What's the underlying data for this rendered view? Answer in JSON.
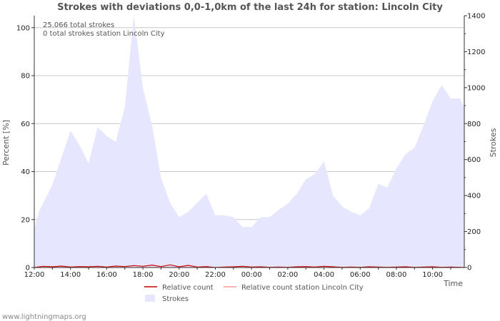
{
  "chart_data": {
    "type": "area",
    "title": "Strokes with deviations 0,0-1,0km of the last 24h for station: Lincoln City",
    "xlabel": "Time",
    "ylabel_left": "Percent   [%]",
    "ylabel_right": "Strokes",
    "ylim_left": [
      0,
      105
    ],
    "ylim_right": [
      0,
      1400
    ],
    "xlim": [
      12.0,
      35.75
    ],
    "left_ticks": [
      "0",
      "20",
      "40",
      "60",
      "80",
      "100"
    ],
    "left_tick_values": [
      0,
      20,
      40,
      60,
      80,
      100
    ],
    "right_ticks": [
      "0",
      "200",
      "400",
      "600",
      "800",
      "1000",
      "1200",
      "1400"
    ],
    "right_tick_values": [
      0,
      200,
      400,
      600,
      800,
      1000,
      1200,
      1400
    ],
    "x_ticks": [
      "12:00",
      "14:00",
      "16:00",
      "18:00",
      "20:00",
      "22:00",
      "00:00",
      "02:00",
      "04:00",
      "06:00",
      "08:00",
      "10:00"
    ],
    "x_tick_hours": [
      12,
      14,
      16,
      18,
      20,
      22,
      24,
      26,
      28,
      30,
      32,
      34
    ],
    "annotations": [
      "25.066 total strokes",
      "0 total strokes station Lincoln City"
    ],
    "legend": {
      "relative_count": "Relative count",
      "relative_station": "Relative count station Lincoln City",
      "strokes": "Strokes"
    },
    "series": [
      {
        "name": "Strokes",
        "axis": "right",
        "color": "#e6e6ff",
        "hours": [
          12.0,
          12.25,
          12.5,
          13.0,
          13.5,
          14.0,
          14.5,
          15.0,
          15.5,
          16.0,
          16.5,
          17.0,
          17.5,
          18.0,
          18.5,
          19.0,
          19.5,
          20.0,
          20.5,
          21.0,
          21.5,
          22.0,
          22.5,
          23.0,
          23.5,
          24.0,
          24.5,
          25.0,
          25.5,
          26.0,
          26.5,
          27.0,
          27.5,
          28.0,
          28.5,
          29.0,
          29.5,
          30.0,
          30.5,
          31.0,
          31.5,
          32.0,
          32.5,
          33.0,
          33.5,
          34.0,
          34.5,
          35.0,
          35.5,
          35.75
        ],
        "values": [
          210,
          310,
          360,
          460,
          610,
          760,
          680,
          580,
          780,
          730,
          700,
          890,
          1400,
          1000,
          790,
          500,
          360,
          280,
          310,
          360,
          410,
          290,
          290,
          280,
          225,
          225,
          280,
          280,
          320,
          355,
          410,
          490,
          520,
          590,
          400,
          340,
          310,
          290,
          330,
          465,
          445,
          550,
          630,
          665,
          790,
          925,
          1015,
          940,
          940,
          890
        ]
      },
      {
        "name": "Relative count",
        "axis": "left",
        "color": "#cc0000",
        "hours": [
          12.0,
          12.5,
          13.0,
          13.5,
          14.0,
          14.5,
          15.0,
          15.5,
          16.0,
          16.5,
          17.0,
          17.5,
          18.0,
          18.5,
          19.0,
          19.5,
          20.0,
          20.5,
          21.0,
          21.5,
          22.0,
          22.5,
          23.0,
          23.5,
          24.0,
          24.5,
          25.0,
          25.5,
          26.0,
          26.5,
          27.0,
          27.5,
          28.0,
          28.5,
          29.0,
          29.5,
          30.0,
          30.5,
          31.0,
          31.5,
          32.0,
          32.5,
          33.0,
          33.5,
          34.0,
          34.5,
          35.0,
          35.5,
          35.75
        ],
        "values": [
          0,
          0.5,
          0.3,
          0.6,
          0.2,
          0.4,
          0.3,
          0.5,
          0.2,
          0.6,
          0.4,
          0.8,
          0.5,
          1.0,
          0.4,
          1.1,
          0.3,
          0.9,
          0.2,
          0.4,
          0,
          0.2,
          0.3,
          0.5,
          0.2,
          0.3,
          0.1,
          0.2,
          0.1,
          0.3,
          0.4,
          0.2,
          0.5,
          0.3,
          0.1,
          0.2,
          0.1,
          0.3,
          0.2,
          0.1,
          0.2,
          0.3,
          0.1,
          0.2,
          0.3,
          0.1,
          0.2,
          0.1,
          0
        ]
      },
      {
        "name": "Relative count station Lincoln City",
        "axis": "left",
        "color": "#ff9999",
        "hours": [
          12.0,
          35.75
        ],
        "values": [
          0,
          0
        ]
      }
    ]
  },
  "footer": "www.lightningmaps.org"
}
